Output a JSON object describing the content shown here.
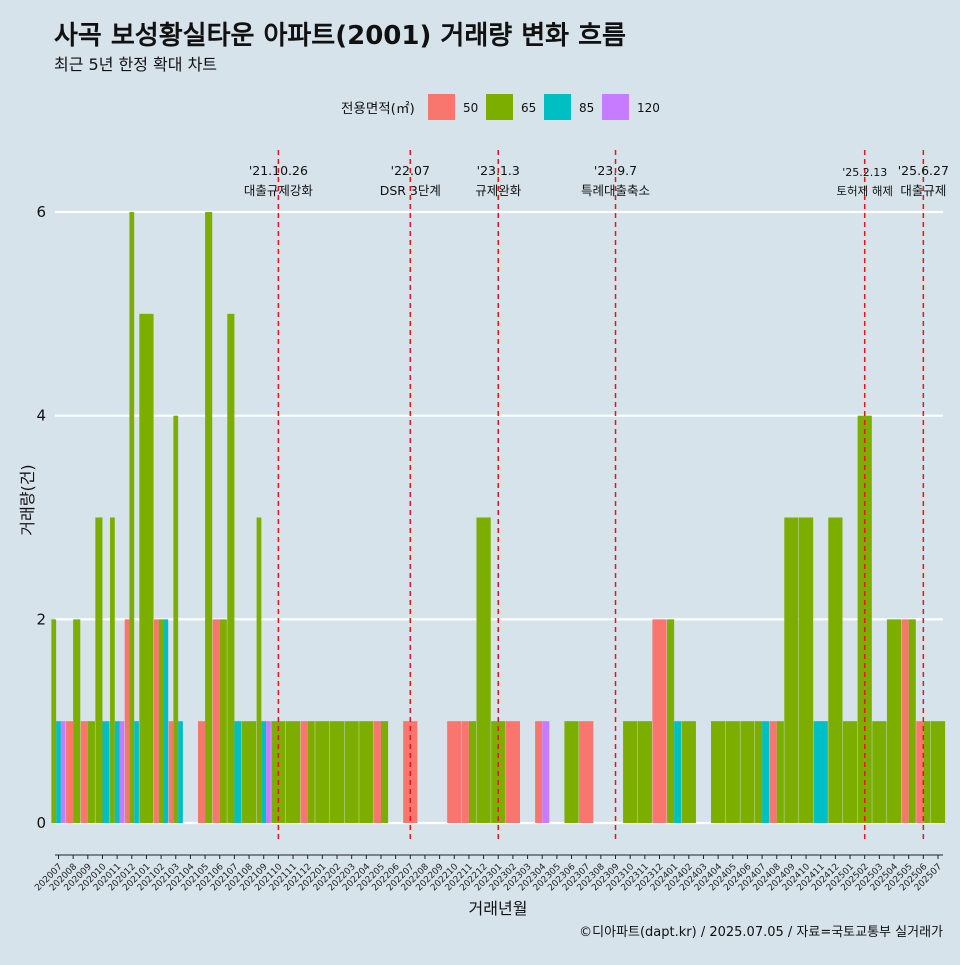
{
  "chart_data": {
    "type": "bar",
    "title": "사곡 보성황실타운 아파트(2001) 거래량 변화 흐름",
    "subtitle": "최근 5년 한정 확대 차트",
    "xlabel": "거래년월",
    "ylabel": "거래량(건)",
    "caption": "©디아파트(dapt.kr) / 2025.07.05 / 자료=국토교통부 실거래가",
    "legend_title": "전용면적(㎡)",
    "legend_position": "top",
    "grid": "horizontal",
    "ylim": [
      0,
      6
    ],
    "y_ticks": [
      0,
      2,
      4,
      6
    ],
    "categories": [
      "202007",
      "202008",
      "202009",
      "202010",
      "202011",
      "202012",
      "202101",
      "202102",
      "202103",
      "202104",
      "202105",
      "202106",
      "202107",
      "202108",
      "202109",
      "202110",
      "202111",
      "202112",
      "202201",
      "202202",
      "202203",
      "202204",
      "202205",
      "202206",
      "202207",
      "202208",
      "202209",
      "202210",
      "202211",
      "202212",
      "202301",
      "202302",
      "202303",
      "202304",
      "202305",
      "202306",
      "202307",
      "202308",
      "202309",
      "202310",
      "202311",
      "202312",
      "202401",
      "202402",
      "202403",
      "202404",
      "202405",
      "202406",
      "202407",
      "202408",
      "202409",
      "202410",
      "202411",
      "202412",
      "202501",
      "202502",
      "202503",
      "202504",
      "202505",
      "202506",
      "202507"
    ],
    "series": [
      {
        "name": "50",
        "color": "#f8766d",
        "values": [
          0,
          1,
          1,
          0,
          0,
          2,
          0,
          2,
          1,
          0,
          1,
          2,
          0,
          0,
          0,
          0,
          0,
          1,
          0,
          0,
          0,
          0,
          1,
          0,
          1,
          0,
          0,
          1,
          1,
          0,
          0,
          1,
          0,
          1,
          0,
          0,
          1,
          0,
          0,
          0,
          0,
          2,
          0,
          0,
          0,
          0,
          0,
          0,
          0,
          1,
          0,
          0,
          0,
          0,
          0,
          0,
          0,
          0,
          2,
          1,
          0
        ]
      },
      {
        "name": "65",
        "color": "#7cae00",
        "values": [
          2,
          2,
          1,
          3,
          3,
          6,
          5,
          2,
          4,
          0,
          6,
          2,
          5,
          1,
          3,
          1,
          1,
          1,
          1,
          1,
          1,
          1,
          1,
          0,
          0,
          0,
          0,
          0,
          1,
          3,
          1,
          0,
          0,
          0,
          0,
          1,
          0,
          0,
          0,
          1,
          1,
          0,
          2,
          1,
          0,
          1,
          1,
          1,
          1,
          1,
          3,
          3,
          0,
          3,
          1,
          4,
          1,
          2,
          2,
          1,
          1
        ]
      },
      {
        "name": "85",
        "color": "#00bfc4",
        "values": [
          1,
          0,
          0,
          1,
          1,
          1,
          0,
          2,
          1,
          0,
          0,
          0,
          1,
          0,
          1,
          0,
          0,
          0,
          0,
          0,
          0,
          0,
          0,
          0,
          0,
          0,
          0,
          0,
          0,
          0,
          0,
          0,
          0,
          0,
          0,
          0,
          0,
          0,
          0,
          0,
          0,
          0,
          1,
          0,
          0,
          0,
          0,
          0,
          1,
          0,
          0,
          0,
          1,
          0,
          0,
          0,
          0,
          0,
          0,
          0,
          0
        ]
      },
      {
        "name": "120",
        "color": "#c77cff",
        "values": [
          1,
          0,
          0,
          0,
          1,
          0,
          0,
          0,
          0,
          0,
          0,
          0,
          0,
          0,
          1,
          0,
          0,
          0,
          0,
          0,
          0,
          0,
          0,
          0,
          0,
          0,
          0,
          0,
          0,
          0,
          0,
          0,
          0,
          1,
          0,
          0,
          0,
          0,
          0,
          0,
          0,
          0,
          0,
          0,
          0,
          0,
          0,
          0,
          0,
          0,
          0,
          0,
          0,
          0,
          0,
          0,
          0,
          0,
          0,
          0,
          0
        ]
      }
    ],
    "annotations": [
      {
        "month": "202110",
        "date": "'21.10.26",
        "text": "대출규제강화"
      },
      {
        "month": "202207",
        "date": "'22.07",
        "text": "DSR 3단계"
      },
      {
        "month": "202301",
        "date": "'23.1.3",
        "text": "규제완화"
      },
      {
        "month": "202309",
        "date": "'23.9.7",
        "text": "특례대출축소"
      },
      {
        "month": "202502",
        "date": "'25.2.13",
        "text": "토허제 해제"
      },
      {
        "month": "202506",
        "date": "'25.6.27",
        "text": "대출규제"
      }
    ]
  }
}
